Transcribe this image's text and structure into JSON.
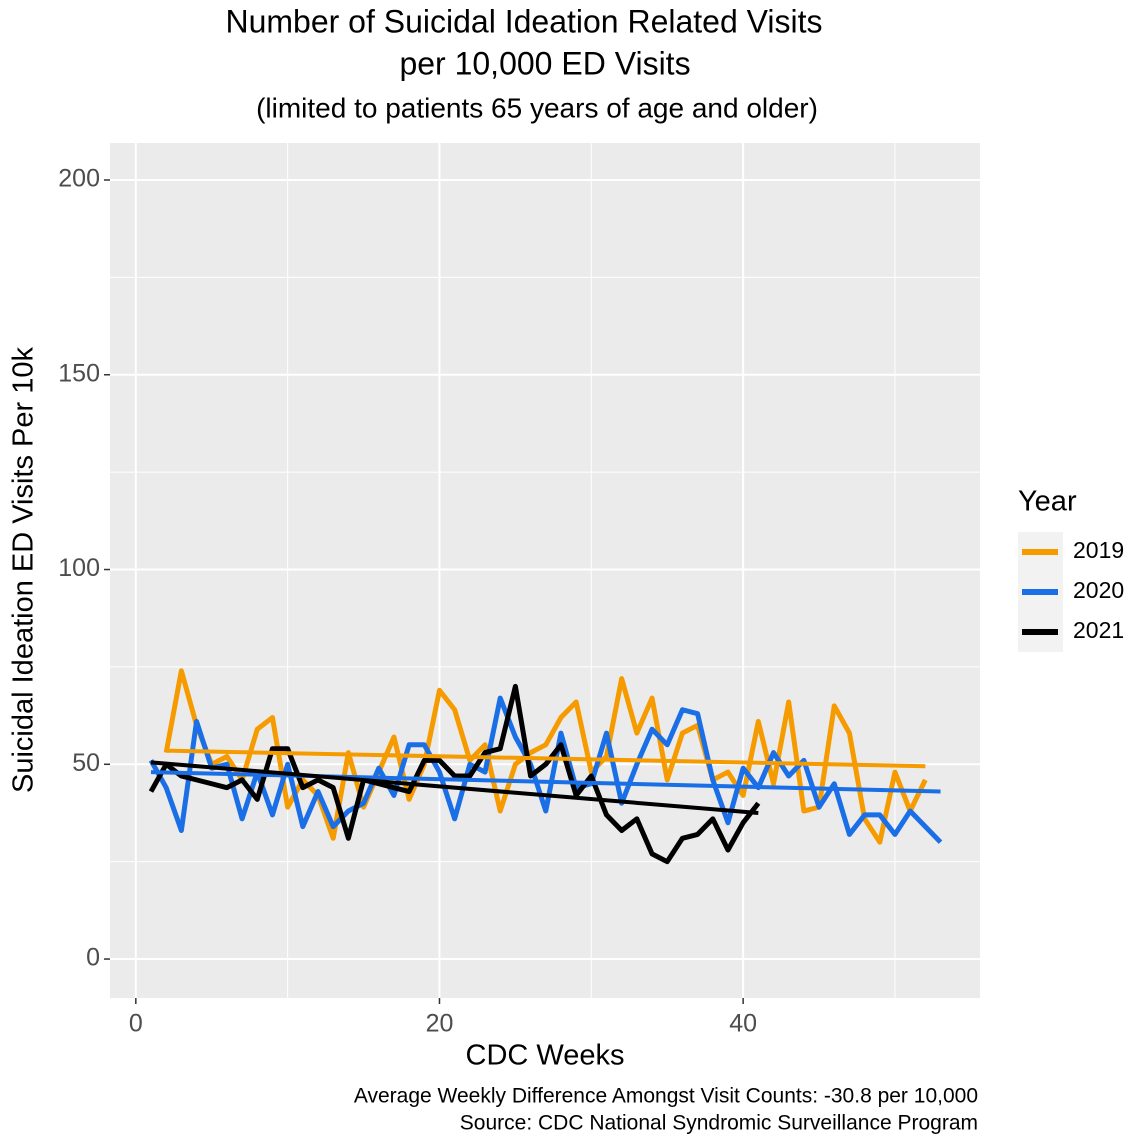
{
  "chart_data": {
    "type": "line",
    "title": [
      "Number of Suicidal Ideation Related Visits",
      "per 10,000 ED Visits"
    ],
    "subtitle": "(limited to patients 65 years of age and older)",
    "x_label": "CDC Weeks",
    "y_label": "Suicidal Ideation ED Visits Per 10k",
    "caption": [
      "Average Weekly Difference Amongst Visit Counts: -30.8 per 10,000",
      "Source: CDC National Syndromic Surveillance Program"
    ],
    "legend_title": "Year",
    "legend_position": "right",
    "grid": true,
    "xlim": [
      -1.7,
      55.6
    ],
    "ylim": [
      -10,
      209.5
    ],
    "xticks": [
      0,
      20,
      40
    ],
    "yticks": [
      0,
      50,
      100,
      150,
      200
    ],
    "xminor": [
      10,
      30,
      50
    ],
    "yminor": [
      25,
      75,
      125,
      175
    ],
    "series": [
      {
        "name": "2019",
        "color": "#f59b00",
        "x": [
          2,
          3,
          4,
          5,
          6,
          7,
          8,
          9,
          10,
          11,
          12,
          13,
          14,
          15,
          16,
          17,
          18,
          19,
          20,
          21,
          22,
          23,
          24,
          25,
          26,
          27,
          28,
          29,
          30,
          31,
          32,
          33,
          34,
          35,
          36,
          37,
          38,
          39,
          40,
          41,
          42,
          43,
          44,
          45,
          46,
          47,
          48,
          49,
          50,
          51,
          52
        ],
        "values": [
          53,
          74,
          60,
          50,
          52,
          46,
          59,
          62,
          39,
          46,
          42,
          31,
          53,
          39,
          48,
          57,
          41,
          50,
          69,
          64,
          51,
          55,
          38,
          50,
          53,
          55,
          62,
          66,
          48,
          52,
          72,
          58,
          67,
          46,
          58,
          60,
          46,
          48,
          42,
          61,
          45,
          66,
          38,
          39,
          65,
          58,
          36,
          30,
          48,
          38,
          46
        ],
        "trend_x": [
          2,
          52
        ],
        "trend_y": [
          53.5,
          49.5
        ]
      },
      {
        "name": "2020",
        "color": "#1a6ee6",
        "x": [
          1,
          2,
          3,
          4,
          5,
          6,
          7,
          8,
          9,
          10,
          11,
          12,
          13,
          14,
          15,
          16,
          17,
          18,
          19,
          20,
          21,
          22,
          23,
          24,
          25,
          26,
          27,
          28,
          29,
          30,
          31,
          32,
          33,
          34,
          35,
          36,
          37,
          38,
          39,
          40,
          41,
          42,
          43,
          44,
          45,
          46,
          47,
          48,
          49,
          50,
          51,
          52,
          53
        ],
        "values": [
          51,
          44,
          33,
          61,
          49,
          50,
          36,
          48,
          37,
          50,
          34,
          43,
          34,
          38,
          40,
          49,
          42,
          55,
          55,
          48,
          36,
          50,
          48,
          67,
          57,
          50,
          38,
          58,
          44,
          45,
          58,
          40,
          50,
          59,
          55,
          64,
          63,
          46,
          35,
          49,
          44,
          53,
          47,
          51,
          39,
          45,
          32,
          37,
          37,
          32,
          38,
          34,
          30
        ],
        "trend_x": [
          1,
          53
        ],
        "trend_y": [
          48,
          43
        ]
      },
      {
        "name": "2021",
        "color": "#000000",
        "x": [
          1,
          2,
          3,
          4,
          5,
          6,
          7,
          8,
          9,
          10,
          11,
          12,
          13,
          14,
          15,
          16,
          17,
          18,
          19,
          20,
          21,
          22,
          23,
          24,
          25,
          26,
          27,
          28,
          29,
          30,
          31,
          32,
          33,
          34,
          35,
          36,
          37,
          38,
          39,
          40,
          41
        ],
        "values": [
          43,
          50,
          47,
          46,
          45,
          44,
          46,
          41,
          54,
          54,
          44,
          46,
          44,
          31,
          46,
          45,
          44,
          43,
          51,
          51,
          47,
          47,
          53,
          54,
          70,
          47,
          50,
          55,
          42,
          47,
          37,
          33,
          36,
          27,
          25,
          31,
          32,
          36,
          28,
          35,
          40
        ],
        "trend_x": [
          1,
          41
        ],
        "trend_y": [
          50.5,
          37.5
        ]
      }
    ]
  }
}
